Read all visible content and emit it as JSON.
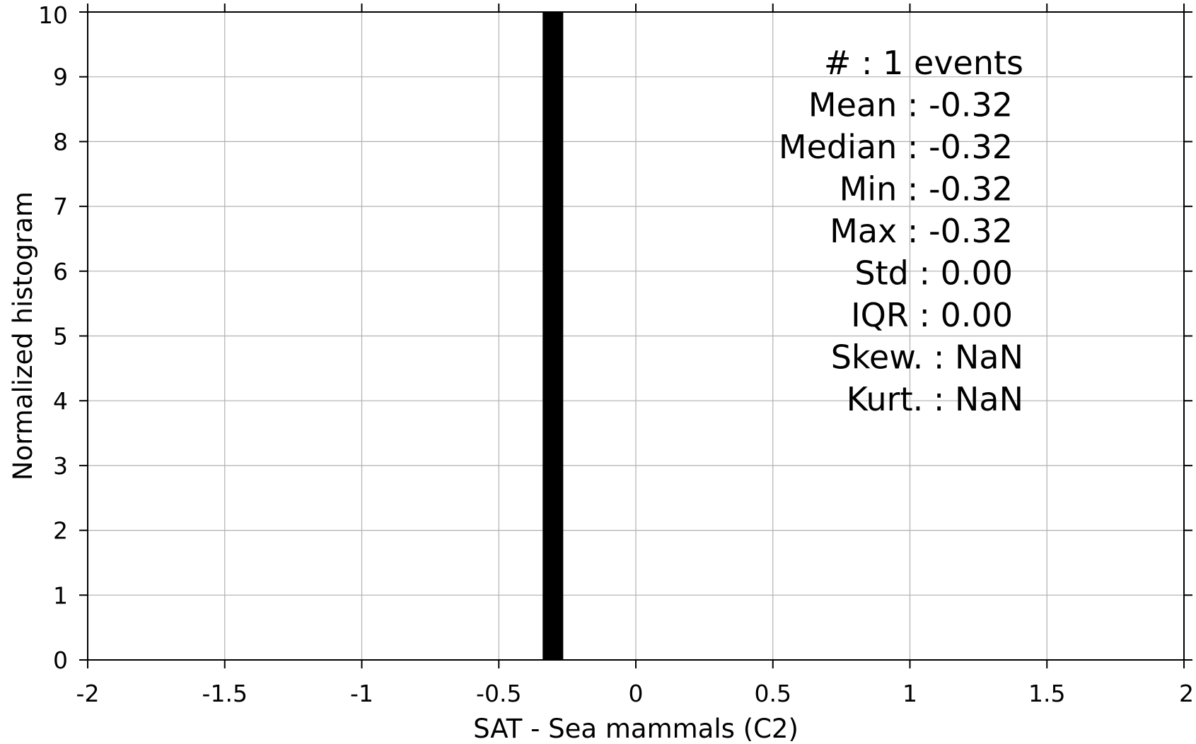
{
  "chart_data": {
    "type": "bar",
    "xlabel": "SAT - Sea mammals (C2)",
    "ylabel": "Normalized histogram",
    "xlim": [
      -2,
      2
    ],
    "ylim": [
      0,
      10
    ],
    "xticks": [
      -2,
      -1.5,
      -1,
      -0.5,
      0,
      0.5,
      1,
      1.5,
      2
    ],
    "xtick_labels": [
      "-2",
      "-1.5",
      "-1",
      "-0.5",
      "0",
      "0.5",
      "1",
      "1.5",
      "2"
    ],
    "yticks": [
      0,
      1,
      2,
      3,
      4,
      5,
      6,
      7,
      8,
      9,
      10
    ],
    "ytick_labels": [
      "0",
      "1",
      "2",
      "3",
      "4",
      "5",
      "6",
      "7",
      "8",
      "9",
      "10"
    ],
    "grid": true,
    "bars": [
      {
        "x_start": -0.34,
        "x_end": -0.265,
        "value": 10
      }
    ],
    "bar_color": "#000000",
    "stats": [
      {
        "label": "#  : 1 events"
      },
      {
        "label": "Mean : -0.32"
      },
      {
        "label": "Median : -0.32"
      },
      {
        "label": "Min : -0.32"
      },
      {
        "label": "Max : -0.32"
      },
      {
        "label": "Std : 0.00"
      },
      {
        "label": "IQR : 0.00"
      },
      {
        "label": "Skew. : NaN"
      },
      {
        "label": "Kurt. : NaN"
      }
    ]
  }
}
